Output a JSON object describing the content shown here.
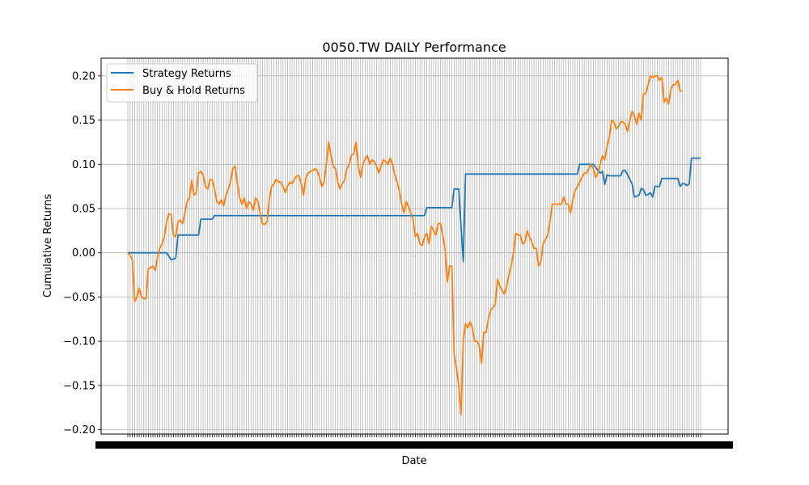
{
  "chart_data": {
    "type": "line",
    "title": "0050.TW DAILY Performance",
    "xlabel": "Date",
    "ylabel": "Cumulative Returns",
    "ylim": [
      -0.205,
      0.22
    ],
    "yticks": [
      -0.2,
      -0.15,
      -0.1,
      -0.05,
      0.0,
      0.05,
      0.1,
      0.15,
      0.2
    ],
    "ytick_labels": [
      "−0.20",
      "−0.15",
      "−0.10",
      "−0.05",
      "0.00",
      "0.05",
      "0.10",
      "0.15",
      "0.20"
    ],
    "grid": true,
    "legend_position": "top-left",
    "n_points": 251,
    "series": [
      {
        "name": "Strategy Returns",
        "color": "#1f77b4",
        "points": [
          [
            0,
            0
          ],
          [
            17,
            0
          ],
          [
            19,
            -0.008
          ],
          [
            21,
            -0.006
          ],
          [
            22,
            0.02
          ],
          [
            31,
            0.02
          ],
          [
            32,
            0.038
          ],
          [
            37,
            0.038
          ],
          [
            38,
            0.042
          ],
          [
            130,
            0.042
          ],
          [
            131,
            0.051
          ],
          [
            142,
            0.051
          ],
          [
            143,
            0.072
          ],
          [
            145,
            0.072
          ],
          [
            147,
            -0.01
          ],
          [
            148,
            0.089
          ],
          [
            197,
            0.089
          ],
          [
            198,
            0.1
          ],
          [
            204,
            0.1
          ],
          [
            207,
            0.09
          ],
          [
            208,
            0.092
          ],
          [
            209,
            0.077
          ],
          [
            210,
            0.088
          ],
          [
            211,
            0.087
          ],
          [
            216,
            0.087
          ],
          [
            217,
            0.093
          ],
          [
            218,
            0.093
          ],
          [
            221,
            0.078
          ],
          [
            222,
            0.063
          ],
          [
            224,
            0.065
          ],
          [
            225,
            0.073
          ],
          [
            226,
            0.071
          ],
          [
            227,
            0.065
          ],
          [
            228,
            0.066
          ],
          [
            229,
            0.068
          ],
          [
            230,
            0.063
          ],
          [
            231,
            0.075
          ],
          [
            233,
            0.075
          ],
          [
            234,
            0.084
          ],
          [
            241,
            0.084
          ],
          [
            242,
            0.075
          ],
          [
            243,
            0.078
          ],
          [
            244,
            0.078
          ],
          [
            245,
            0.076
          ],
          [
            246,
            0.078
          ],
          [
            247,
            0.107
          ],
          [
            251,
            0.107
          ]
        ]
      },
      {
        "name": "Buy & Hold Returns",
        "color": "#ff7f0e",
        "points": [
          [
            0,
            0
          ],
          [
            1,
            -0.003
          ],
          [
            2,
            -0.008
          ],
          [
            3,
            -0.055
          ],
          [
            4,
            -0.05
          ],
          [
            5,
            -0.04
          ],
          [
            6,
            -0.05
          ],
          [
            7,
            -0.052
          ],
          [
            8,
            -0.052
          ],
          [
            9,
            -0.018
          ],
          [
            10,
            -0.017
          ],
          [
            11,
            -0.015
          ],
          [
            12,
            -0.02
          ],
          [
            13,
            -0.005
          ],
          [
            14,
            0.005
          ],
          [
            15,
            0.01
          ],
          [
            16,
            0.018
          ],
          [
            17,
            0.035
          ],
          [
            18,
            0.044
          ],
          [
            19,
            0.043
          ],
          [
            20,
            0.02
          ],
          [
            21,
            0.018
          ],
          [
            22,
            0.035
          ],
          [
            23,
            0.037
          ],
          [
            24,
            0.033
          ],
          [
            25,
            0.045
          ],
          [
            26,
            0.058
          ],
          [
            27,
            0.062
          ],
          [
            28,
            0.082
          ],
          [
            29,
            0.065
          ],
          [
            30,
            0.068
          ],
          [
            31,
            0.09
          ],
          [
            32,
            0.092
          ],
          [
            33,
            0.088
          ],
          [
            34,
            0.075
          ],
          [
            35,
            0.072
          ],
          [
            36,
            0.083
          ],
          [
            37,
            0.082
          ],
          [
            38,
            0.072
          ],
          [
            39,
            0.058
          ],
          [
            40,
            0.055
          ],
          [
            41,
            0.06
          ],
          [
            42,
            0.053
          ],
          [
            43,
            0.065
          ],
          [
            44,
            0.072
          ],
          [
            45,
            0.08
          ],
          [
            46,
            0.095
          ],
          [
            47,
            0.098
          ],
          [
            48,
            0.078
          ],
          [
            49,
            0.062
          ],
          [
            50,
            0.055
          ],
          [
            51,
            0.062
          ],
          [
            52,
            0.05
          ],
          [
            53,
            0.058
          ],
          [
            54,
            0.055
          ],
          [
            55,
            0.048
          ],
          [
            56,
            0.062
          ],
          [
            57,
            0.058
          ],
          [
            58,
            0.045
          ],
          [
            59,
            0.033
          ],
          [
            60,
            0.032
          ],
          [
            61,
            0.035
          ],
          [
            62,
            0.06
          ],
          [
            63,
            0.075
          ],
          [
            64,
            0.078
          ],
          [
            65,
            0.083
          ],
          [
            66,
            0.08
          ],
          [
            67,
            0.08
          ],
          [
            68,
            0.075
          ],
          [
            69,
            0.068
          ],
          [
            70,
            0.075
          ],
          [
            71,
            0.08
          ],
          [
            72,
            0.078
          ],
          [
            73,
            0.083
          ],
          [
            74,
            0.087
          ],
          [
            75,
            0.087
          ],
          [
            76,
            0.078
          ],
          [
            77,
            0.065
          ],
          [
            78,
            0.085
          ],
          [
            79,
            0.09
          ],
          [
            80,
            0.092
          ],
          [
            81,
            0.093
          ],
          [
            82,
            0.095
          ],
          [
            83,
            0.093
          ],
          [
            84,
            0.085
          ],
          [
            85,
            0.075
          ],
          [
            86,
            0.08
          ],
          [
            87,
            0.1
          ],
          [
            88,
            0.125
          ],
          [
            89,
            0.11
          ],
          [
            90,
            0.098
          ],
          [
            91,
            0.095
          ],
          [
            92,
            0.08
          ],
          [
            93,
            0.072
          ],
          [
            94,
            0.078
          ],
          [
            95,
            0.082
          ],
          [
            96,
            0.095
          ],
          [
            97,
            0.1
          ],
          [
            98,
            0.11
          ],
          [
            99,
            0.112
          ],
          [
            100,
            0.125
          ],
          [
            101,
            0.098
          ],
          [
            102,
            0.085
          ],
          [
            103,
            0.1
          ],
          [
            104,
            0.106
          ],
          [
            105,
            0.11
          ],
          [
            106,
            0.1
          ],
          [
            107,
            0.105
          ],
          [
            108,
            0.103
          ],
          [
            109,
            0.098
          ],
          [
            110,
            0.09
          ],
          [
            111,
            0.098
          ],
          [
            112,
            0.105
          ],
          [
            113,
            0.103
          ],
          [
            114,
            0.1
          ],
          [
            115,
            0.107
          ],
          [
            116,
            0.1
          ],
          [
            117,
            0.088
          ],
          [
            118,
            0.08
          ],
          [
            119,
            0.07
          ],
          [
            120,
            0.055
          ],
          [
            121,
            0.045
          ],
          [
            122,
            0.058
          ],
          [
            123,
            0.052
          ],
          [
            124,
            0.045
          ],
          [
            125,
            0.038
          ],
          [
            126,
            0.018
          ],
          [
            127,
            0.022
          ],
          [
            128,
            0.01
          ],
          [
            129,
            0.008
          ],
          [
            130,
            0.018
          ],
          [
            131,
            0.022
          ],
          [
            132,
            0.01
          ],
          [
            133,
            0.03
          ],
          [
            134,
            0.025
          ],
          [
            135,
            0.02
          ],
          [
            136,
            0.033
          ],
          [
            137,
            0.033
          ],
          [
            138,
            0.02
          ],
          [
            139,
            0.005
          ],
          [
            140,
            -0.033
          ],
          [
            141,
            -0.015
          ],
          [
            142,
            -0.015
          ],
          [
            143,
            -0.115
          ],
          [
            144,
            -0.13
          ],
          [
            145,
            -0.15
          ],
          [
            146,
            -0.183
          ],
          [
            147,
            -0.1
          ],
          [
            148,
            -0.08
          ],
          [
            149,
            -0.085
          ],
          [
            150,
            -0.078
          ],
          [
            151,
            -0.085
          ],
          [
            152,
            -0.1
          ],
          [
            153,
            -0.1
          ],
          [
            154,
            -0.105
          ],
          [
            155,
            -0.125
          ],
          [
            156,
            -0.09
          ],
          [
            157,
            -0.09
          ],
          [
            158,
            -0.075
          ],
          [
            159,
            -0.065
          ],
          [
            160,
            -0.062
          ],
          [
            161,
            -0.058
          ],
          [
            162,
            -0.03
          ],
          [
            163,
            -0.038
          ],
          [
            164,
            -0.042
          ],
          [
            165,
            -0.047
          ],
          [
            166,
            -0.038
          ],
          [
            167,
            -0.025
          ],
          [
            168,
            -0.015
          ],
          [
            169,
            0.0
          ],
          [
            170,
            0.022
          ],
          [
            171,
            0.02
          ],
          [
            172,
            0.02
          ],
          [
            173,
            0.01
          ],
          [
            174,
            0.012
          ],
          [
            175,
            0.025
          ],
          [
            176,
            0.018
          ],
          [
            177,
            0.012
          ],
          [
            178,
            0.005
          ],
          [
            179,
            0.005
          ],
          [
            180,
            -0.015
          ],
          [
            181,
            -0.01
          ],
          [
            182,
            0.01
          ],
          [
            183,
            0.015
          ],
          [
            184,
            0.02
          ],
          [
            185,
            0.035
          ],
          [
            186,
            0.055
          ],
          [
            187,
            0.055
          ],
          [
            188,
            0.055
          ],
          [
            189,
            0.055
          ],
          [
            190,
            0.055
          ],
          [
            191,
            0.063
          ],
          [
            192,
            0.055
          ],
          [
            193,
            0.055
          ],
          [
            194,
            0.045
          ],
          [
            195,
            0.06
          ],
          [
            196,
            0.07
          ],
          [
            197,
            0.075
          ],
          [
            198,
            0.08
          ],
          [
            199,
            0.085
          ],
          [
            200,
            0.09
          ],
          [
            201,
            0.09
          ],
          [
            202,
            0.095
          ],
          [
            203,
            0.1
          ],
          [
            204,
            0.095
          ],
          [
            205,
            0.085
          ],
          [
            206,
            0.09
          ],
          [
            207,
            0.1
          ],
          [
            208,
            0.11
          ],
          [
            209,
            0.105
          ],
          [
            210,
            0.12
          ],
          [
            211,
            0.13
          ],
          [
            212,
            0.15
          ],
          [
            213,
            0.148
          ],
          [
            214,
            0.14
          ],
          [
            215,
            0.143
          ],
          [
            216,
            0.148
          ],
          [
            217,
            0.148
          ],
          [
            218,
            0.145
          ],
          [
            219,
            0.137
          ],
          [
            220,
            0.15
          ],
          [
            221,
            0.16
          ],
          [
            222,
            0.155
          ],
          [
            223,
            0.145
          ],
          [
            224,
            0.158
          ],
          [
            225,
            0.15
          ],
          [
            226,
            0.18
          ],
          [
            227,
            0.18
          ],
          [
            228,
            0.19
          ],
          [
            229,
            0.2
          ],
          [
            230,
            0.198
          ],
          [
            231,
            0.2
          ],
          [
            232,
            0.2
          ],
          [
            233,
            0.195
          ],
          [
            234,
            0.198
          ],
          [
            235,
            0.17
          ],
          [
            236,
            0.175
          ],
          [
            237,
            0.168
          ],
          [
            238,
            0.185
          ],
          [
            239,
            0.19
          ],
          [
            240,
            0.19
          ],
          [
            241,
            0.195
          ],
          [
            242,
            0.183
          ],
          [
            243,
            0.183
          ]
        ]
      }
    ]
  }
}
